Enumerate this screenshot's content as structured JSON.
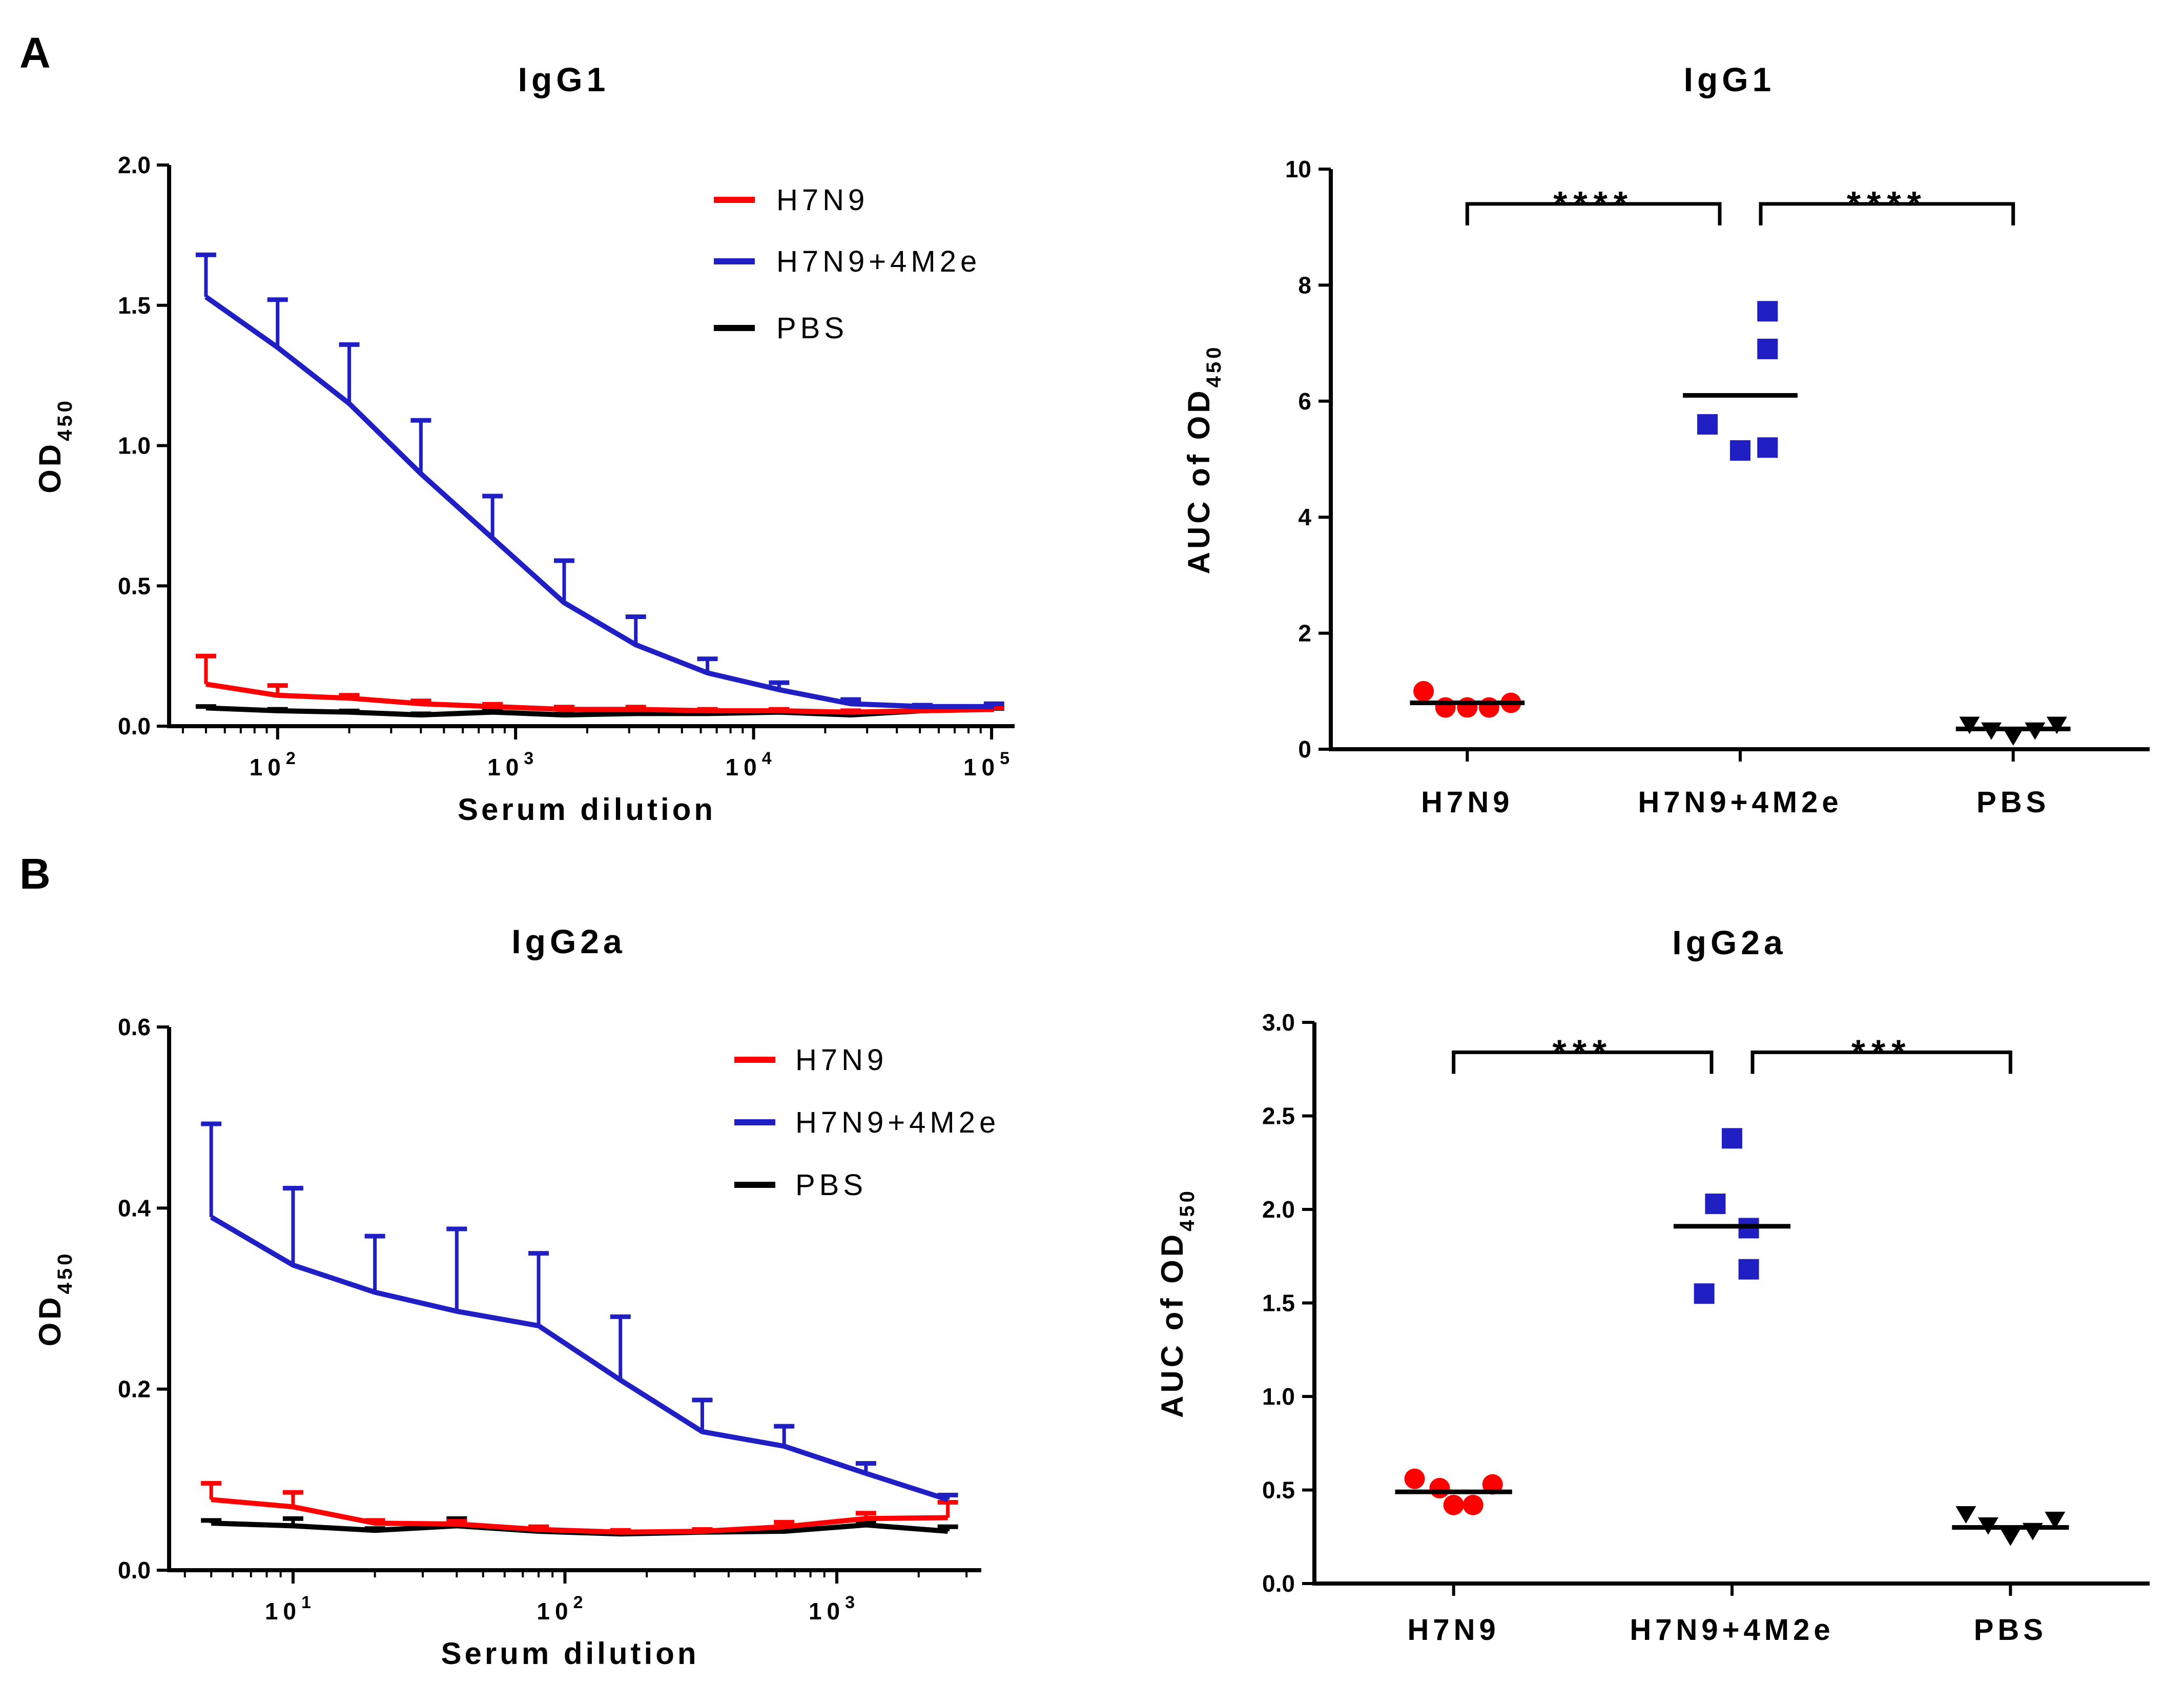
{
  "panels": {
    "a": {
      "letter": "A"
    },
    "b": {
      "letter": "B"
    }
  },
  "chart_data": [
    {
      "id": "a1",
      "type": "line",
      "title": "IgG1",
      "xlabel": "Serum dilution",
      "ylabel": "OD",
      "ylabel_sub": "450",
      "xscale": "log",
      "xlim": [
        35,
        125000
      ],
      "ylim": [
        0,
        2.0
      ],
      "yticks": [
        0.0,
        0.5,
        1.0,
        1.5,
        2.0
      ],
      "ytick_labels": [
        "0.0",
        "0.5",
        "1.0",
        "1.5",
        "2.0"
      ],
      "xticks": [
        {
          "value": 100,
          "base": "10",
          "exp": "2"
        },
        {
          "value": 1000,
          "base": "10",
          "exp": "3"
        },
        {
          "value": 10000,
          "base": "10",
          "exp": "4"
        },
        {
          "value": 100000,
          "base": "10",
          "exp": "5"
        }
      ],
      "legend_position": "top-right",
      "x": [
        50,
        100,
        200,
        400,
        800,
        1600,
        3200,
        6400,
        12800,
        25600,
        51200,
        102400
      ],
      "series": [
        {
          "name": "H7N9",
          "color": "#ff0000",
          "values": [
            0.15,
            0.11,
            0.1,
            0.08,
            0.07,
            0.06,
            0.06,
            0.055,
            0.055,
            0.05,
            0.055,
            0.06
          ],
          "errors": [
            0.1,
            0.035,
            0.01,
            0.01,
            0.008,
            0.008,
            0.008,
            0.005,
            0.005,
            0.005,
            0.005,
            0.005
          ]
        },
        {
          "name": "H7N9+4M2e",
          "color": "#1f1fc4",
          "values": [
            1.53,
            1.35,
            1.15,
            0.9,
            0.67,
            0.44,
            0.29,
            0.19,
            0.13,
            0.08,
            0.07,
            0.07
          ],
          "errors": [
            0.15,
            0.17,
            0.21,
            0.19,
            0.15,
            0.15,
            0.1,
            0.05,
            0.025,
            0.015,
            0.005,
            0.01
          ]
        },
        {
          "name": "PBS",
          "color": "#000000",
          "values": [
            0.065,
            0.055,
            0.05,
            0.04,
            0.05,
            0.04,
            0.045,
            0.045,
            0.05,
            0.04,
            0.055,
            0.06
          ],
          "errors": [
            0.005,
            0.005,
            0.004,
            0.004,
            0.004,
            0.003,
            0.003,
            0.003,
            0.003,
            0.003,
            0.003,
            0.003
          ]
        }
      ]
    },
    {
      "id": "a2",
      "type": "scatter",
      "title": "IgG1",
      "ylabel": "AUC of OD",
      "ylabel_sub": "450",
      "ylim": [
        0,
        10
      ],
      "yticks": [
        0,
        2,
        4,
        6,
        8,
        10
      ],
      "ytick_labels": [
        "0",
        "2",
        "4",
        "6",
        "8",
        "10"
      ],
      "categories": [
        "H7N9",
        "H7N9+4M2e",
        "PBS"
      ],
      "groups": [
        {
          "name": "H7N9",
          "color": "#ff0000",
          "marker": "circle",
          "mean": 0.8,
          "points": [
            {
              "dx": -0.16,
              "y": 1.0
            },
            {
              "dx": -0.08,
              "y": 0.72
            },
            {
              "dx": 0.0,
              "y": 0.72
            },
            {
              "dx": 0.08,
              "y": 0.72
            },
            {
              "dx": 0.16,
              "y": 0.8
            }
          ]
        },
        {
          "name": "H7N9+4M2e",
          "color": "#1f1fc4",
          "marker": "square",
          "mean": 6.1,
          "points": [
            {
              "dx": 0.1,
              "y": 7.55
            },
            {
              "dx": 0.1,
              "y": 6.9
            },
            {
              "dx": -0.12,
              "y": 5.6
            },
            {
              "dx": 0.0,
              "y": 5.15
            },
            {
              "dx": 0.1,
              "y": 5.2
            }
          ]
        },
        {
          "name": "PBS",
          "color": "#000000",
          "marker": "triangle-down",
          "mean": 0.35,
          "points": [
            {
              "dx": -0.16,
              "y": 0.42
            },
            {
              "dx": -0.08,
              "y": 0.32
            },
            {
              "dx": 0.0,
              "y": 0.22
            },
            {
              "dx": 0.08,
              "y": 0.32
            },
            {
              "dx": 0.16,
              "y": 0.42
            }
          ]
        }
      ],
      "significance": [
        {
          "from": 0,
          "to": 1,
          "y": 9.4,
          "label": "****"
        },
        {
          "from": 1,
          "to": 2,
          "y": 9.4,
          "label": "****"
        }
      ]
    },
    {
      "id": "b1",
      "type": "line",
      "title": "IgG2a",
      "xlabel": "Serum dilution",
      "ylabel": "OD",
      "ylabel_sub": "450",
      "xscale": "log",
      "xlim": [
        3.5,
        3400
      ],
      "ylim": [
        0,
        0.6
      ],
      "yticks": [
        0.0,
        0.2,
        0.4,
        0.6
      ],
      "ytick_labels": [
        "0.0",
        "0.2",
        "0.4",
        "0.6"
      ],
      "xticks": [
        {
          "value": 10,
          "base": "10",
          "exp": "1"
        },
        {
          "value": 100,
          "base": "10",
          "exp": "2"
        },
        {
          "value": 1000,
          "base": "10",
          "exp": "3"
        }
      ],
      "legend_position": "top-right",
      "x": [
        5,
        10,
        20,
        40,
        80,
        160,
        320,
        640,
        1280,
        2560
      ],
      "series": [
        {
          "name": "H7N9",
          "color": "#ff0000",
          "values": [
            0.078,
            0.07,
            0.052,
            0.051,
            0.045,
            0.042,
            0.043,
            0.048,
            0.057,
            0.058
          ],
          "errors": [
            0.018,
            0.016,
            0.003,
            0.003,
            0.003,
            0.002,
            0.002,
            0.005,
            0.006,
            0.017
          ]
        },
        {
          "name": "H7N9+4M2e",
          "color": "#1f1fc4",
          "values": [
            0.39,
            0.337,
            0.307,
            0.286,
            0.27,
            0.21,
            0.153,
            0.137,
            0.107,
            0.078
          ],
          "errors": [
            0.103,
            0.085,
            0.062,
            0.091,
            0.08,
            0.07,
            0.035,
            0.022,
            0.011,
            0.005
          ]
        },
        {
          "name": "PBS",
          "color": "#000000",
          "values": [
            0.052,
            0.049,
            0.044,
            0.049,
            0.043,
            0.04,
            0.042,
            0.043,
            0.05,
            0.043
          ],
          "errors": [
            0.003,
            0.008,
            0.002,
            0.008,
            0.002,
            0.002,
            0.002,
            0.002,
            0.004,
            0.005
          ]
        }
      ]
    },
    {
      "id": "b2",
      "type": "scatter",
      "title": "IgG2a",
      "ylabel": "AUC of OD",
      "ylabel_sub": "450",
      "ylim": [
        0,
        3.0
      ],
      "yticks": [
        0.0,
        0.5,
        1.0,
        1.5,
        2.0,
        2.5,
        3.0
      ],
      "ytick_labels": [
        "0.0",
        "0.5",
        "1.0",
        "1.5",
        "2.0",
        "2.5",
        "3.0"
      ],
      "categories": [
        "H7N9",
        "H7N9+4M2e",
        "PBS"
      ],
      "groups": [
        {
          "name": "H7N9",
          "color": "#ff0000",
          "marker": "circle",
          "mean": 0.49,
          "points": [
            {
              "dx": -0.14,
              "y": 0.56
            },
            {
              "dx": -0.05,
              "y": 0.51
            },
            {
              "dx": 0.0,
              "y": 0.42
            },
            {
              "dx": 0.07,
              "y": 0.42
            },
            {
              "dx": 0.14,
              "y": 0.53
            }
          ]
        },
        {
          "name": "H7N9+4M2e",
          "color": "#1f1fc4",
          "marker": "square",
          "mean": 1.91,
          "points": [
            {
              "dx": -0.06,
              "y": 2.03
            },
            {
              "dx": 0.0,
              "y": 2.38
            },
            {
              "dx": 0.06,
              "y": 1.68
            },
            {
              "dx": -0.1,
              "y": 1.55
            },
            {
              "dx": 0.06,
              "y": 1.9
            }
          ]
        },
        {
          "name": "PBS",
          "color": "#000000",
          "marker": "triangle-down",
          "mean": 0.3,
          "points": [
            {
              "dx": -0.16,
              "y": 0.37
            },
            {
              "dx": -0.08,
              "y": 0.31
            },
            {
              "dx": 0.0,
              "y": 0.25
            },
            {
              "dx": 0.08,
              "y": 0.28
            },
            {
              "dx": 0.16,
              "y": 0.34
            }
          ]
        }
      ],
      "significance": [
        {
          "from": 0,
          "to": 1,
          "y": 2.84,
          "label": "***"
        },
        {
          "from": 1,
          "to": 2,
          "y": 2.84,
          "label": "***"
        }
      ]
    }
  ]
}
